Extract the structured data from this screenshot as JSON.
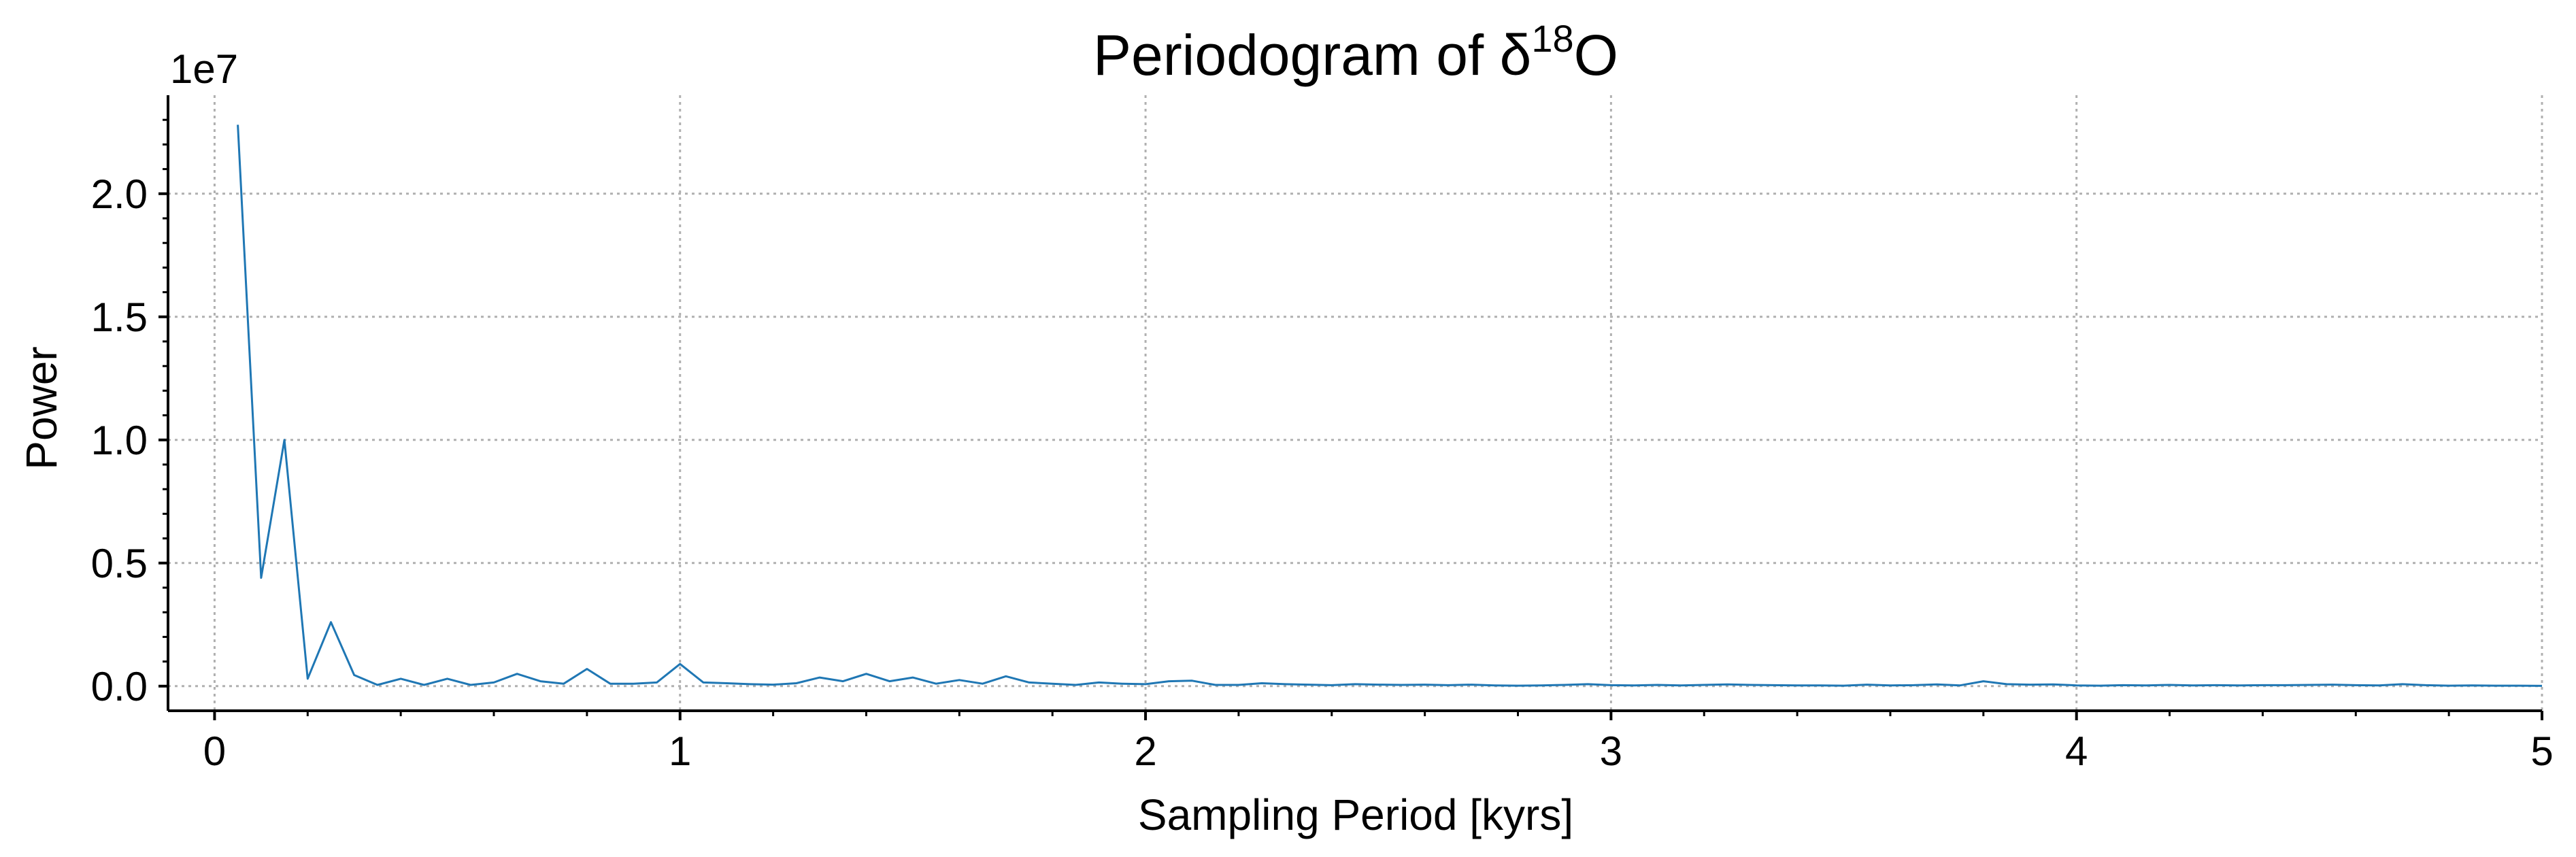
{
  "chart_data": {
    "type": "line",
    "title": "Periodogram of δ",
    "title_superscript": "18",
    "title_suffix": "O",
    "xlabel": "Sampling Period [kyrs]",
    "ylabel": "Power",
    "y_offset_label": "1e7",
    "xlim": [
      -0.1,
      5.0
    ],
    "ylim": [
      -0.1,
      2.4
    ],
    "x_ticks": [
      0,
      1,
      2,
      3,
      4,
      5
    ],
    "x_tick_labels": [
      "0",
      "1",
      "2",
      "3",
      "4",
      "5"
    ],
    "y_ticks": [
      0.0,
      0.5,
      1.0,
      1.5,
      2.0
    ],
    "y_tick_labels": [
      "0.0",
      "0.5",
      "1.0",
      "1.5",
      "2.0"
    ],
    "grid": true,
    "line_color": "#1f77b4",
    "series": [
      {
        "x": [
          0.05,
          0.1,
          0.15,
          0.2,
          0.25,
          0.3,
          0.35,
          0.4,
          0.45,
          0.5,
          0.55,
          0.6,
          0.65,
          0.7,
          0.75,
          0.8,
          0.85,
          0.9,
          0.95,
          1.0,
          1.05,
          1.1,
          1.15,
          1.2,
          1.25,
          1.3,
          1.35,
          1.4,
          1.45,
          1.5,
          1.55,
          1.6,
          1.65,
          1.7,
          1.75,
          1.8,
          1.85,
          1.9,
          1.95,
          2.0,
          2.05,
          2.1,
          2.15,
          2.2,
          2.25,
          2.3,
          2.35,
          2.4,
          2.45,
          2.5,
          2.55,
          2.6,
          2.65,
          2.7,
          2.75,
          2.8,
          2.85,
          2.9,
          2.95,
          3.0,
          3.05,
          3.1,
          3.15,
          3.2,
          3.25,
          3.3,
          3.35,
          3.4,
          3.45,
          3.5,
          3.55,
          3.6,
          3.65,
          3.7,
          3.75,
          3.8,
          3.85,
          3.9,
          3.95,
          4.0,
          4.05,
          4.1,
          4.15,
          4.2,
          4.25,
          4.3,
          4.35,
          4.4,
          4.45,
          4.5,
          4.55,
          4.6,
          4.65,
          4.7,
          4.75,
          4.8,
          4.85,
          4.9,
          4.95,
          5.0
        ],
        "values": [
          2.28,
          0.44,
          1.0,
          0.03,
          0.26,
          0.045,
          0.005,
          0.03,
          0.005,
          0.03,
          0.005,
          0.015,
          0.05,
          0.02,
          0.01,
          0.07,
          0.01,
          0.01,
          0.015,
          0.09,
          0.015,
          0.012,
          0.008,
          0.006,
          0.012,
          0.035,
          0.02,
          0.05,
          0.02,
          0.035,
          0.01,
          0.025,
          0.01,
          0.04,
          0.015,
          0.01,
          0.005,
          0.015,
          0.01,
          0.008,
          0.02,
          0.022,
          0.005,
          0.005,
          0.012,
          0.008,
          0.006,
          0.004,
          0.008,
          0.006,
          0.005,
          0.006,
          0.004,
          0.006,
          0.003,
          0.002,
          0.003,
          0.005,
          0.008,
          0.004,
          0.003,
          0.005,
          0.003,
          0.005,
          0.007,
          0.005,
          0.004,
          0.003,
          0.003,
          0.002,
          0.006,
          0.003,
          0.004,
          0.007,
          0.003,
          0.02,
          0.008,
          0.006,
          0.007,
          0.003,
          0.002,
          0.004,
          0.003,
          0.005,
          0.003,
          0.004,
          0.003,
          0.004,
          0.004,
          0.005,
          0.006,
          0.004,
          0.003,
          0.008,
          0.004,
          0.002,
          0.003,
          0.002,
          0.002,
          0.001
        ]
      }
    ]
  }
}
